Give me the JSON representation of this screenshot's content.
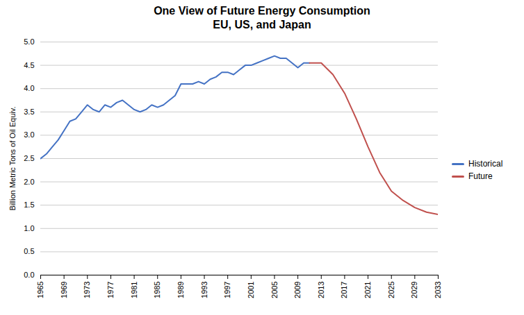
{
  "chart_data": {
    "type": "line",
    "title": "One View of Future Energy Consumption\nEU, US, and Japan",
    "ylabel": "Billion Metric Tons of Oil Equiv.",
    "ylim": [
      0,
      5.0
    ],
    "yticks": [
      {
        "value": 0.0,
        "label": "0.0"
      },
      0.5,
      {
        "value": 1.0,
        "label": "1.0"
      },
      1.5,
      {
        "value": 2.0,
        "label": "2.0"
      },
      2.5,
      {
        "value": 3.0,
        "label": "3.0"
      },
      3.5,
      {
        "value": 4.0,
        "label": "4.0"
      },
      4.5,
      {
        "value": 5.0,
        "label": "5.0"
      }
    ],
    "xlim": [
      1965,
      2033
    ],
    "xticks": [
      1965,
      1969,
      1973,
      1977,
      1981,
      1985,
      1989,
      1993,
      1997,
      2001,
      2005,
      2009,
      2013,
      2017,
      2021,
      2025,
      2029,
      2033
    ],
    "grid": "y",
    "legend": "right",
    "series": [
      {
        "name": "Historical",
        "color": "#4472C4",
        "x": [
          1965,
          1966,
          1967,
          1968,
          1969,
          1970,
          1971,
          1972,
          1973,
          1974,
          1975,
          1976,
          1977,
          1978,
          1979,
          1980,
          1981,
          1982,
          1983,
          1984,
          1985,
          1986,
          1987,
          1988,
          1989,
          1990,
          1991,
          1992,
          1993,
          1994,
          1995,
          1996,
          1997,
          1998,
          1999,
          2000,
          2001,
          2002,
          2003,
          2004,
          2005,
          2006,
          2007,
          2008,
          2009,
          2010,
          2011
        ],
        "values": [
          2.5,
          2.6,
          2.75,
          2.9,
          3.1,
          3.3,
          3.35,
          3.5,
          3.65,
          3.55,
          3.5,
          3.65,
          3.6,
          3.7,
          3.75,
          3.65,
          3.55,
          3.5,
          3.55,
          3.65,
          3.6,
          3.65,
          3.75,
          3.85,
          4.1,
          4.1,
          4.1,
          4.15,
          4.1,
          4.2,
          4.25,
          4.35,
          4.35,
          4.3,
          4.4,
          4.5,
          4.5,
          4.55,
          4.6,
          4.65,
          4.7,
          4.65,
          4.65,
          4.55,
          4.45,
          4.55,
          4.55
        ]
      },
      {
        "name": "Future",
        "color": "#C0504D",
        "x": [
          2011,
          2013,
          2015,
          2017,
          2019,
          2021,
          2023,
          2025,
          2027,
          2029,
          2031,
          2033
        ],
        "values": [
          4.55,
          4.55,
          4.3,
          3.9,
          3.35,
          2.75,
          2.2,
          1.8,
          1.6,
          1.45,
          1.35,
          1.3
        ]
      }
    ]
  }
}
